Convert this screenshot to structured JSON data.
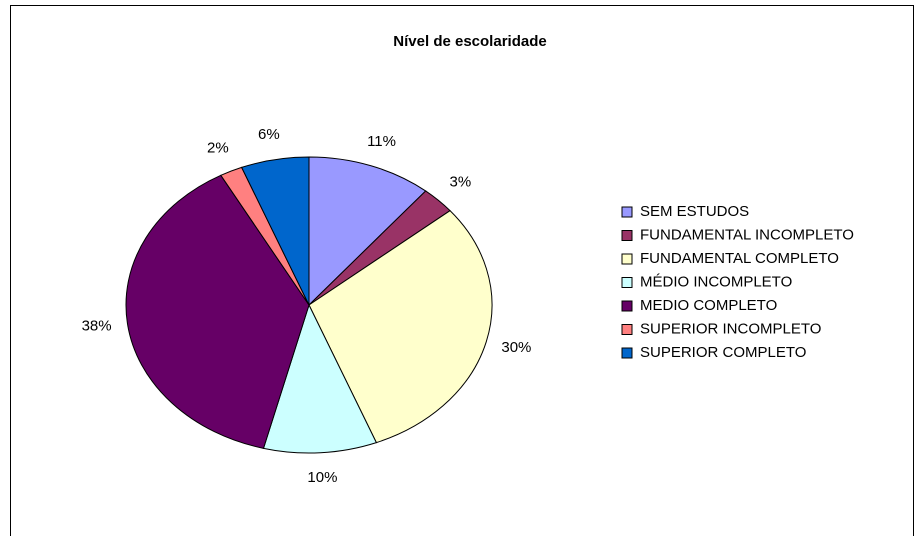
{
  "chart_data": {
    "type": "pie",
    "title": "Nível de escolaridade",
    "categories": [
      "SEM ESTUDOS",
      "FUNDAMENTAL INCOMPLETO",
      "FUNDAMENTAL COMPLETO",
      "MÉDIO INCOMPLETO",
      "MEDIO COMPLETO",
      "SUPERIOR INCOMPLETO",
      "SUPERIOR COMPLETO"
    ],
    "values": [
      11,
      3,
      30,
      10,
      38,
      2,
      6
    ],
    "value_labels": [
      "11%",
      "3%",
      "30%",
      "10%",
      "38%",
      "2%",
      "6%"
    ],
    "colors": [
      "#9999ff",
      "#993366",
      "#ffffcc",
      "#ccffff",
      "#660066",
      "#ff8080",
      "#0066cc"
    ],
    "legend": "right"
  }
}
